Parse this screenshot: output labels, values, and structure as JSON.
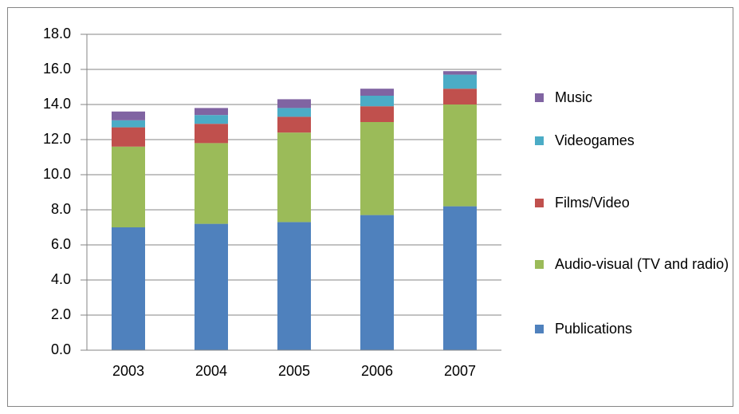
{
  "chart_data": {
    "type": "stacked-bar",
    "categories": [
      "2003",
      "2004",
      "2005",
      "2006",
      "2007"
    ],
    "series": [
      {
        "name": "Publications",
        "color": "#4f81bd",
        "values": [
          7.0,
          7.2,
          7.3,
          7.7,
          8.2
        ]
      },
      {
        "name": "Audio-visual (TV and radio)",
        "color": "#9bbb59",
        "values": [
          4.6,
          4.6,
          5.1,
          5.3,
          5.8
        ]
      },
      {
        "name": "Films/Video",
        "color": "#c0504d",
        "values": [
          1.1,
          1.1,
          0.9,
          0.9,
          0.9
        ]
      },
      {
        "name": "Videogames",
        "color": "#4bacc6",
        "values": [
          0.4,
          0.5,
          0.5,
          0.6,
          0.8
        ]
      },
      {
        "name": "Music",
        "color": "#8064a2",
        "values": [
          0.5,
          0.4,
          0.5,
          0.4,
          0.2
        ]
      }
    ],
    "ylim": [
      0,
      18
    ],
    "yticks": [
      {
        "value": 0,
        "label": "0.0"
      },
      {
        "value": 2,
        "label": "2.0"
      },
      {
        "value": 4,
        "label": "4.0"
      },
      {
        "value": 6,
        "label": "6.0"
      },
      {
        "value": 8,
        "label": "8.0"
      },
      {
        "value": 10,
        "label": "10.0"
      },
      {
        "value": 12,
        "label": "12.0"
      },
      {
        "value": 14,
        "label": "14.0"
      },
      {
        "value": 16,
        "label": "16.0"
      },
      {
        "value": 18,
        "label": "18.0"
      }
    ],
    "grid": true,
    "legend": "right"
  }
}
